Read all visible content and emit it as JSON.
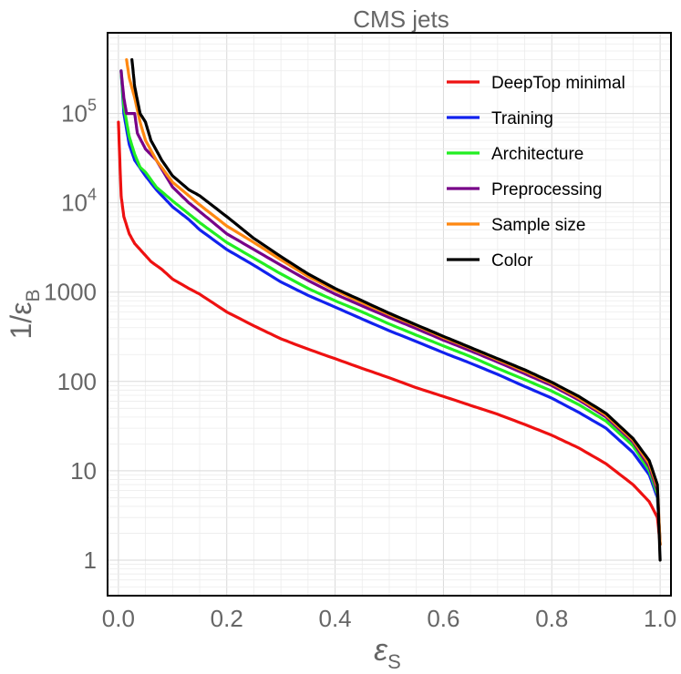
{
  "chart_data": {
    "type": "line",
    "title": "CMS jets",
    "xlabel": "ε",
    "xlabel_sub": "S",
    "ylabel": "1/ε",
    "ylabel_sub": "B",
    "xlim": [
      -0.02,
      1.02
    ],
    "ylim": [
      0.4,
      800000
    ],
    "yscale": "log",
    "grid": true,
    "legend_position": "top-right",
    "x_ticks": [
      {
        "value": 0.0,
        "label": "0.0"
      },
      {
        "value": 0.2,
        "label": "0.2"
      },
      {
        "value": 0.4,
        "label": "0.4"
      },
      {
        "value": 0.6,
        "label": "0.6"
      },
      {
        "value": 0.8,
        "label": "0.8"
      },
      {
        "value": 1.0,
        "label": "1.0"
      }
    ],
    "y_ticks": [
      {
        "value": 1,
        "label": "1"
      },
      {
        "value": 10,
        "label": "10"
      },
      {
        "value": 100,
        "label": "100"
      },
      {
        "value": 1000,
        "label": "1000"
      },
      {
        "value": 10000,
        "base": "10",
        "exp": "4"
      },
      {
        "value": 100000,
        "base": "10",
        "exp": "5"
      }
    ],
    "series": [
      {
        "name": "DeepTop minimal",
        "color": "#ee1111",
        "points": [
          [
            0.0,
            80000
          ],
          [
            0.005,
            12000
          ],
          [
            0.01,
            7000
          ],
          [
            0.02,
            4500
          ],
          [
            0.03,
            3500
          ],
          [
            0.04,
            3000
          ],
          [
            0.06,
            2200
          ],
          [
            0.08,
            1800
          ],
          [
            0.1,
            1400
          ],
          [
            0.13,
            1100
          ],
          [
            0.15,
            950
          ],
          [
            0.2,
            600
          ],
          [
            0.25,
            420
          ],
          [
            0.3,
            300
          ],
          [
            0.35,
            230
          ],
          [
            0.4,
            180
          ],
          [
            0.45,
            140
          ],
          [
            0.5,
            110
          ],
          [
            0.55,
            85
          ],
          [
            0.6,
            68
          ],
          [
            0.65,
            54
          ],
          [
            0.7,
            43
          ],
          [
            0.75,
            33
          ],
          [
            0.8,
            25
          ],
          [
            0.85,
            18
          ],
          [
            0.9,
            12
          ],
          [
            0.95,
            7
          ],
          [
            0.98,
            4.5
          ],
          [
            0.995,
            3
          ],
          [
            1.0,
            1.5
          ]
        ]
      },
      {
        "name": "Training",
        "color": "#1122ee",
        "points": [
          [
            0.005,
            300000
          ],
          [
            0.01,
            100000
          ],
          [
            0.02,
            45000
          ],
          [
            0.03,
            30000
          ],
          [
            0.05,
            20000
          ],
          [
            0.07,
            14000
          ],
          [
            0.1,
            9000
          ],
          [
            0.13,
            6500
          ],
          [
            0.15,
            5000
          ],
          [
            0.2,
            3000
          ],
          [
            0.25,
            2000
          ],
          [
            0.3,
            1300
          ],
          [
            0.35,
            920
          ],
          [
            0.4,
            680
          ],
          [
            0.45,
            500
          ],
          [
            0.5,
            370
          ],
          [
            0.55,
            280
          ],
          [
            0.6,
            210
          ],
          [
            0.65,
            160
          ],
          [
            0.7,
            120
          ],
          [
            0.75,
            88
          ],
          [
            0.8,
            65
          ],
          [
            0.85,
            45
          ],
          [
            0.9,
            30
          ],
          [
            0.95,
            16
          ],
          [
            0.98,
            9
          ],
          [
            0.995,
            5
          ],
          [
            1.0,
            1.5
          ]
        ]
      },
      {
        "name": "Architecture",
        "color": "#22ee22",
        "points": [
          [
            0.005,
            300000
          ],
          [
            0.01,
            120000
          ],
          [
            0.02,
            55000
          ],
          [
            0.03,
            35000
          ],
          [
            0.04,
            25000
          ],
          [
            0.05,
            22000
          ],
          [
            0.07,
            15000
          ],
          [
            0.1,
            10500
          ],
          [
            0.13,
            7500
          ],
          [
            0.15,
            6000
          ],
          [
            0.2,
            3600
          ],
          [
            0.25,
            2400
          ],
          [
            0.3,
            1600
          ],
          [
            0.35,
            1100
          ],
          [
            0.4,
            800
          ],
          [
            0.45,
            600
          ],
          [
            0.5,
            440
          ],
          [
            0.55,
            330
          ],
          [
            0.6,
            250
          ],
          [
            0.65,
            190
          ],
          [
            0.7,
            140
          ],
          [
            0.75,
            105
          ],
          [
            0.8,
            78
          ],
          [
            0.85,
            55
          ],
          [
            0.9,
            36
          ],
          [
            0.95,
            19
          ],
          [
            0.98,
            10
          ],
          [
            0.995,
            5.5
          ],
          [
            1.0,
            1.5
          ]
        ]
      },
      {
        "name": "Preprocessing",
        "color": "#770088",
        "points": [
          [
            0.005,
            300000
          ],
          [
            0.01,
            150000
          ],
          [
            0.015,
            100000
          ],
          [
            0.03,
            100000
          ],
          [
            0.035,
            60000
          ],
          [
            0.05,
            40000
          ],
          [
            0.07,
            30000
          ],
          [
            0.1,
            15000
          ],
          [
            0.13,
            10000
          ],
          [
            0.15,
            8000
          ],
          [
            0.2,
            4500
          ],
          [
            0.25,
            3000
          ],
          [
            0.3,
            2000
          ],
          [
            0.35,
            1350
          ],
          [
            0.4,
            950
          ],
          [
            0.45,
            700
          ],
          [
            0.5,
            520
          ],
          [
            0.55,
            390
          ],
          [
            0.6,
            290
          ],
          [
            0.65,
            220
          ],
          [
            0.7,
            165
          ],
          [
            0.75,
            122
          ],
          [
            0.8,
            90
          ],
          [
            0.85,
            62
          ],
          [
            0.9,
            40
          ],
          [
            0.95,
            21
          ],
          [
            0.98,
            11
          ],
          [
            0.995,
            6
          ],
          [
            1.0,
            1.5
          ]
        ]
      },
      {
        "name": "Sample size",
        "color": "#ff8811",
        "points": [
          [
            0.015,
            400000
          ],
          [
            0.02,
            250000
          ],
          [
            0.03,
            150000
          ],
          [
            0.04,
            80000
          ],
          [
            0.05,
            50000
          ],
          [
            0.07,
            30000
          ],
          [
            0.1,
            17000
          ],
          [
            0.13,
            12000
          ],
          [
            0.15,
            9500
          ],
          [
            0.2,
            5500
          ],
          [
            0.25,
            3600
          ],
          [
            0.3,
            2300
          ],
          [
            0.35,
            1500
          ],
          [
            0.4,
            1050
          ],
          [
            0.45,
            760
          ],
          [
            0.5,
            560
          ],
          [
            0.55,
            420
          ],
          [
            0.6,
            310
          ],
          [
            0.65,
            235
          ],
          [
            0.7,
            175
          ],
          [
            0.75,
            130
          ],
          [
            0.8,
            95
          ],
          [
            0.85,
            65
          ],
          [
            0.9,
            42
          ],
          [
            0.95,
            22
          ],
          [
            0.98,
            12
          ],
          [
            0.995,
            6.5
          ],
          [
            1.0,
            1.5
          ]
        ]
      },
      {
        "name": "Color",
        "color": "#000000",
        "points": [
          [
            0.025,
            400000
          ],
          [
            0.03,
            200000
          ],
          [
            0.04,
            100000
          ],
          [
            0.05,
            80000
          ],
          [
            0.06,
            50000
          ],
          [
            0.08,
            30000
          ],
          [
            0.1,
            20000
          ],
          [
            0.13,
            14000
          ],
          [
            0.15,
            12000
          ],
          [
            0.2,
            7000
          ],
          [
            0.25,
            4000
          ],
          [
            0.3,
            2500
          ],
          [
            0.35,
            1600
          ],
          [
            0.4,
            1100
          ],
          [
            0.45,
            800
          ],
          [
            0.5,
            580
          ],
          [
            0.55,
            430
          ],
          [
            0.6,
            320
          ],
          [
            0.65,
            240
          ],
          [
            0.7,
            180
          ],
          [
            0.75,
            135
          ],
          [
            0.8,
            98
          ],
          [
            0.85,
            68
          ],
          [
            0.9,
            44
          ],
          [
            0.95,
            23
          ],
          [
            0.98,
            13
          ],
          [
            0.995,
            7
          ],
          [
            1.0,
            1.0
          ]
        ]
      }
    ]
  }
}
